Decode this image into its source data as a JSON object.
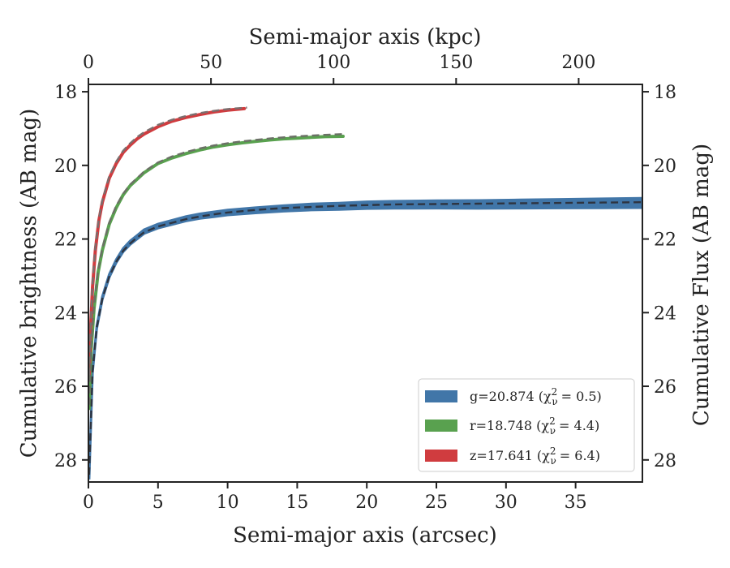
{
  "chart_data": {
    "type": "line",
    "xlabel": "Semi-major axis (arcsec)",
    "xlabel_top": "Semi-major axis (kpc)",
    "ylabel": "Cumulative brightness (AB mag)",
    "ylabel_right": "Cumulative Flux (AB mag)",
    "xlim": [
      0,
      39.8
    ],
    "ylim": [
      28.6,
      17.8
    ],
    "y_inverted": true,
    "xlim_top": [
      0,
      226
    ],
    "x_ticks": [
      "0",
      "5",
      "10",
      "15",
      "20",
      "25",
      "30",
      "35"
    ],
    "x_top_ticks": [
      "0",
      "50",
      "100",
      "150",
      "200"
    ],
    "y_ticks": [
      "18",
      "20",
      "22",
      "24",
      "26",
      "28"
    ],
    "grid": false,
    "legend_position": "lower right",
    "series": [
      {
        "name": "g=20.874",
        "chi2_label": "(χ",
        "chi2_value": "= 0.5)",
        "color": "#4176a8",
        "band_halfwidth": [
          0.03,
          0.04,
          0.05,
          0.06,
          0.07,
          0.09,
          0.11,
          0.13
        ],
        "x": [
          0.05,
          0.3,
          0.6,
          1.0,
          1.5,
          2.0,
          2.5,
          3.0,
          3.5,
          4.0,
          5.0,
          6.0,
          7.0,
          8.0,
          9.0,
          10.0,
          12.0,
          14.0,
          16.0,
          18.0,
          20.0,
          22.0,
          25.0,
          28.0,
          31.0,
          34.0,
          37.0,
          39.8
        ],
        "y": [
          28.5,
          25.6,
          24.4,
          23.6,
          23.0,
          22.6,
          22.3,
          22.1,
          21.95,
          21.8,
          21.65,
          21.55,
          21.45,
          21.38,
          21.33,
          21.28,
          21.22,
          21.17,
          21.13,
          21.11,
          21.08,
          21.07,
          21.06,
          21.06,
          21.05,
          21.04,
          21.03,
          21.02
        ]
      },
      {
        "name": "r=18.748",
        "chi2_label": "(χ",
        "chi2_value": "= 4.4)",
        "color": "#59a14f",
        "x": [
          0.05,
          0.2,
          0.4,
          0.7,
          1.0,
          1.5,
          2.0,
          2.5,
          3.0,
          4.0,
          5.0,
          6.0,
          7.0,
          8.0,
          9.0,
          10.0,
          11.0,
          12.0,
          13.0,
          14.0,
          15.0,
          16.0,
          17.0,
          18.3
        ],
        "y": [
          26.6,
          25.0,
          23.9,
          22.9,
          22.3,
          21.6,
          21.15,
          20.8,
          20.55,
          20.2,
          19.95,
          19.8,
          19.68,
          19.58,
          19.5,
          19.44,
          19.39,
          19.35,
          19.31,
          19.28,
          19.26,
          19.24,
          19.22,
          19.21
        ]
      },
      {
        "name": "z=17.641",
        "chi2_label": "(χ",
        "chi2_value": "= 6.4)",
        "color": "#d03c3f",
        "x": [
          0.05,
          0.15,
          0.3,
          0.5,
          0.75,
          1.0,
          1.5,
          2.0,
          2.5,
          3.0,
          3.5,
          4.0,
          5.0,
          6.0,
          7.0,
          8.0,
          9.0,
          10.0,
          11.2
        ],
        "y": [
          25.8,
          24.5,
          23.3,
          22.3,
          21.5,
          21.0,
          20.35,
          19.95,
          19.65,
          19.45,
          19.28,
          19.15,
          18.95,
          18.8,
          18.7,
          18.62,
          18.55,
          18.5,
          18.46
        ]
      }
    ],
    "model_curves": [
      {
        "color": "#2e3440",
        "style": "dashed",
        "x": [
          0.05,
          0.3,
          0.6,
          1.0,
          1.5,
          2.0,
          2.5,
          3.0,
          3.5,
          4.0,
          5.0,
          6.0,
          7.0,
          8.0,
          9.0,
          10.0,
          12.0,
          14.0,
          16.0,
          18.0,
          20.0,
          22.0,
          25.0,
          28.0,
          31.0,
          34.0,
          37.0,
          39.8
        ],
        "y": [
          28.4,
          25.6,
          24.4,
          23.62,
          23.02,
          22.62,
          22.32,
          22.12,
          21.96,
          21.82,
          21.66,
          21.56,
          21.46,
          21.39,
          21.33,
          21.28,
          21.21,
          21.16,
          21.13,
          21.1,
          21.08,
          21.06,
          21.05,
          21.04,
          21.03,
          21.02,
          21.01,
          21.0
        ]
      },
      {
        "color": "#6b7066",
        "style": "dashed",
        "x": [
          0.05,
          0.2,
          0.4,
          0.7,
          1.0,
          1.5,
          2.0,
          2.5,
          3.0,
          4.0,
          5.0,
          6.0,
          7.0,
          8.0,
          9.0,
          10.0,
          11.0,
          12.0,
          13.0,
          14.0,
          15.0,
          16.0,
          17.0,
          18.3
        ],
        "y": [
          26.5,
          24.9,
          23.8,
          22.85,
          22.25,
          21.55,
          21.1,
          20.77,
          20.52,
          20.17,
          19.92,
          19.76,
          19.64,
          19.54,
          19.46,
          19.4,
          19.35,
          19.31,
          19.27,
          19.24,
          19.21,
          19.19,
          19.17,
          19.15
        ]
      },
      {
        "color": "#7b6e6e",
        "style": "dashed",
        "x": [
          0.05,
          0.15,
          0.3,
          0.5,
          0.75,
          1.0,
          1.5,
          2.0,
          2.5,
          3.0,
          3.5,
          4.0,
          5.0,
          6.0,
          7.0,
          8.0,
          9.0,
          10.0,
          11.4
        ],
        "y": [
          25.7,
          24.4,
          23.2,
          22.2,
          21.45,
          20.95,
          20.3,
          19.9,
          19.6,
          19.4,
          19.23,
          19.1,
          18.9,
          18.76,
          18.66,
          18.58,
          18.52,
          18.47,
          18.43
        ]
      }
    ]
  }
}
